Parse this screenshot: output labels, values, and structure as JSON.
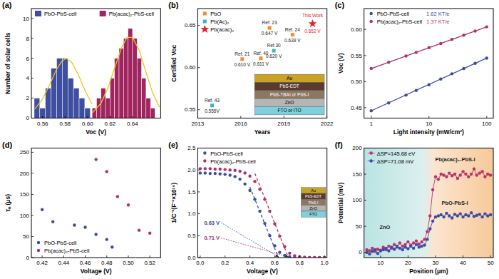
{
  "chart_data": [
    {
      "panel": "(a)",
      "type": "histogram",
      "x_label": "Voc (V)",
      "y_label": "Number of solar cells",
      "xlim": [
        0.55,
        0.665
      ],
      "ylim": [
        0,
        11
      ],
      "xticks": [
        0.56,
        0.58,
        {
          "value": 0.6,
          "label": "0.60"
        },
        0.62,
        0.64
      ],
      "yticks": [
        0,
        2,
        4,
        6,
        8,
        10
      ],
      "legend": "top",
      "series": [
        {
          "name": "PbO-PbS-cell",
          "color": "#3f4fa0",
          "bins": [
            0.5525,
            0.5575,
            0.5625,
            0.5675,
            0.5725,
            0.5775,
            0.5825,
            0.5875,
            0.5925,
            0.5975,
            0.6025
          ],
          "values": [
            2,
            1,
            3,
            5,
            6,
            6,
            4,
            3,
            2,
            1
          ]
        },
        {
          "name": "Pb(acac)₂-PbS-cell",
          "color": "#a0245e",
          "bins": [
            0.604,
            0.608,
            0.612,
            0.616,
            0.62,
            0.624,
            0.628,
            0.632,
            0.636,
            0.64,
            0.644,
            0.648,
            0.652,
            0.656,
            0.66
          ],
          "values": [
            1,
            2,
            3,
            2,
            4,
            6,
            7,
            8,
            9,
            8,
            6,
            4,
            2,
            1
          ]
        },
        {
          "type": "line",
          "line_style": "solid",
          "color": "#f2c21b",
          "x": [
            0.553,
            0.56,
            0.566,
            0.572,
            0.577,
            0.581,
            0.586,
            0.592,
            0.598,
            0.604
          ],
          "values": [
            0.9,
            1.9,
            3.3,
            4.8,
            5.7,
            6.0,
            5.6,
            4.3,
            2.7,
            1.4
          ]
        },
        {
          "type": "line",
          "line_style": "solid",
          "color": "#f2c21b",
          "x": [
            0.604,
            0.612,
            0.618,
            0.624,
            0.63,
            0.635,
            0.64,
            0.646,
            0.652,
            0.658,
            0.664
          ],
          "values": [
            0.5,
            1.5,
            3.0,
            5.0,
            7.0,
            8.1,
            8.1,
            6.8,
            4.6,
            2.5,
            1.1
          ]
        }
      ]
    },
    {
      "panel": "(b)",
      "type": "scatter",
      "x_label": "Years",
      "y_label": "Certified Voc",
      "xlim": [
        2013,
        2022
      ],
      "ylim": [
        0.54,
        0.67
      ],
      "xticks": [
        2013,
        2016,
        2019,
        2022
      ],
      "yticks": [
        0.55,
        {
          "value": 0.6,
          "label": "0.60"
        },
        0.65
      ],
      "legend": "upper left",
      "data_labels": true,
      "series": [
        {
          "name": "PbO",
          "color": "#f08c2a",
          "marker": "square",
          "x": [
            2016.1,
            2017.4,
            2018.0,
            2019.6
          ],
          "values": [
            0.61,
            0.611,
            0.647,
            0.639
          ],
          "value_labels": [
            "0.610 V",
            "0.611 V",
            "0.647 V",
            "0.639 V"
          ],
          "point_labels": [
            "Ref. 21",
            "Ref. 40",
            "Ref. 23",
            "Ref. 24"
          ]
        },
        {
          "name": "Pb(Ac)₂",
          "color": "#3bb4c4",
          "marker": "square",
          "x": [
            2014.0,
            2018.3
          ],
          "values": [
            0.555,
            0.62
          ],
          "value_labels": [
            "0.555V",
            "0.620 V"
          ],
          "point_labels": [
            "Ref. 43",
            "Ref.30"
          ]
        },
        {
          "name": "Pb(acac)₂",
          "color": "#e8202a",
          "marker": "star",
          "x": [
            2021.0
          ],
          "values": [
            0.652
          ],
          "value_labels": [
            "0.652 V"
          ],
          "point_labels": [
            "This Work"
          ]
        }
      ],
      "inset": [
        "Au",
        "PbS-EDT",
        "PbS-TBAI or PbS-I",
        "ZnO",
        "FTO or ITO"
      ]
    },
    {
      "panel": "(c)",
      "type": "scatter",
      "log": "x",
      "x_label": "Light intensity (mW/cm²)",
      "y_label": "Voc (V)",
      "xlim": [
        0.75,
        130
      ],
      "ylim": [
        0.43,
        0.64
      ],
      "xticks": [
        1,
        10,
        100
      ],
      "yticks": [
        0.45,
        {
          "value": 0.5,
          "label": "0.50"
        },
        0.55,
        {
          "value": 0.6,
          "label": "0.60"
        }
      ],
      "legend": "upper left",
      "series": [
        {
          "name": "PbO-PbS-cell",
          "slope_label": "1.62 KT/e",
          "color": "#3a4ba8",
          "marker": "circle",
          "x": [
            1,
            2,
            4,
            6,
            10,
            16,
            25,
            40,
            63,
            100
          ],
          "values": [
            0.444,
            0.459,
            0.474,
            0.483,
            0.494,
            0.505,
            0.515,
            0.525,
            0.535,
            0.545
          ]
        },
        {
          "name": "Pb(acac)₂-PbS-cell",
          "slope_label": "1.37 KT/e",
          "color": "#b0306a",
          "marker": "circle",
          "x": [
            1,
            2,
            4,
            6,
            10,
            16,
            25,
            40,
            63,
            100
          ],
          "values": [
            0.525,
            0.537,
            0.549,
            0.556,
            0.565,
            0.573,
            0.581,
            0.589,
            0.597,
            0.605
          ]
        },
        {
          "type": "line",
          "line_style": "solid",
          "color": "#3a4ba8",
          "x": [
            1,
            100
          ],
          "values": [
            0.444,
            0.545
          ]
        },
        {
          "type": "line",
          "line_style": "solid",
          "color": "#b0306a",
          "x": [
            1,
            100
          ],
          "values": [
            0.525,
            0.605
          ]
        }
      ]
    },
    {
      "panel": "(d)",
      "type": "scatter",
      "x_label": "Voltage (V)",
      "y_label": "τₙ (μs)",
      "xlim": [
        0.41,
        0.53
      ],
      "ylim": [
        0,
        260
      ],
      "xticks": [
        0.42,
        0.44,
        0.46,
        0.48,
        {
          "value": 0.5,
          "label": "0.50"
        },
        0.52
      ],
      "yticks": [
        0,
        50,
        100,
        150,
        200,
        250
      ],
      "legend": "lower left",
      "series": [
        {
          "name": "PbO-PbS-cell",
          "color": "#3a4ba8",
          "marker": "circle",
          "x": [
            0.42,
            0.43,
            0.45,
            0.46,
            0.47,
            0.48,
            0.485
          ],
          "values": [
            114,
            85,
            77,
            72,
            55,
            43,
            25
          ]
        },
        {
          "name": "Pb(acac)₂-PbS-cell",
          "color": "#b0306a",
          "marker": "circle",
          "x": [
            0.47,
            0.48,
            0.49,
            0.5,
            0.51,
            0.52
          ],
          "values": [
            233,
            204,
            145,
            125,
            65,
            58
          ]
        }
      ]
    },
    {
      "panel": "(e)",
      "type": "scatter",
      "x_label": "Voltage (V)",
      "y_label": "1/C⁻²(F⁻²×10¹⁶)",
      "xlim": [
        -0.02,
        1.02
      ],
      "ylim": [
        0,
        2.5
      ],
      "xticks": [
        {
          "value": 0,
          "label": "0.0"
        },
        0.2,
        0.4,
        0.6,
        0.8,
        {
          "value": 1,
          "label": "1.0"
        }
      ],
      "yticks": [
        {
          "value": 0,
          "label": "0.0"
        },
        0.5,
        {
          "value": 1,
          "label": "1.0"
        },
        1.5,
        {
          "value": 2,
          "label": "2.0"
        },
        2.5
      ],
      "legend": "upper left",
      "series": [
        {
          "name": "PbO-PbS-cell",
          "color": "#3a4ba8",
          "marker": "circle",
          "x": [
            0,
            0.04,
            0.08,
            0.12,
            0.16,
            0.2,
            0.24,
            0.28,
            0.32,
            0.36,
            0.4,
            0.44,
            0.48,
            0.52,
            0.56,
            0.6,
            0.64,
            0.68,
            0.72,
            0.76,
            0.8,
            0.84,
            0.88,
            0.92,
            0.96,
            1
          ],
          "values": [
            1.93,
            1.93,
            1.92,
            1.92,
            1.91,
            1.9,
            1.88,
            1.85,
            1.79,
            1.68,
            1.53,
            1.33,
            1.06,
            0.78,
            0.5,
            0.27,
            0.12,
            0.05,
            0.02,
            0.01,
            0.01,
            0,
            0,
            0,
            0,
            0
          ]
        },
        {
          "name": "Pb(acac)₂-PbS-cell",
          "color": "#b0306a",
          "marker": "circle",
          "x": [
            0,
            0.04,
            0.08,
            0.12,
            0.16,
            0.2,
            0.24,
            0.28,
            0.32,
            0.36,
            0.4,
            0.44,
            0.48,
            0.52,
            0.56,
            0.6,
            0.64,
            0.68,
            0.72,
            0.76,
            0.8,
            0.84,
            0.88,
            0.92,
            0.96,
            1
          ],
          "values": [
            2.03,
            2.03,
            2.03,
            2.02,
            2.02,
            2.01,
            2.0,
            1.99,
            1.97,
            1.93,
            1.86,
            1.74,
            1.56,
            1.33,
            1.06,
            0.77,
            0.49,
            0.25,
            0.1,
            0.04,
            0.02,
            0.01,
            0,
            0,
            0,
            0
          ]
        },
        {
          "type": "line",
          "line_style": "dashed",
          "color": "#3a4ba8",
          "x": [
            0.4,
            0.63
          ],
          "values": [
            1.61,
            0
          ]
        },
        {
          "type": "line",
          "line_style": "dashed",
          "color": "#b0306a",
          "x": [
            0.44,
            0.71
          ],
          "values": [
            1.92,
            0
          ]
        }
      ],
      "annotations": [
        {
          "text": "0.63 V",
          "value": 0.63
        },
        {
          "text": "0.71 V",
          "value": 0.71
        }
      ],
      "inset": [
        "Au",
        "PbS-EDT",
        "PbS-I",
        "ZnO",
        "FTO"
      ]
    },
    {
      "panel": "(f)",
      "type": "line",
      "x_label": "Position (μm)",
      "y_label": "Potential (mV)",
      "xlim": [
        4,
        51
      ],
      "ylim": [
        -10,
        200
      ],
      "xticks": [
        10,
        20,
        30,
        40,
        50
      ],
      "yticks": [
        0,
        50,
        100,
        150,
        200
      ],
      "legend": "upper left",
      "series": [
        {
          "name": "ΔSP=145.68 eV",
          "color": "#c0306a",
          "marker": "circle",
          "x": [
            5,
            6,
            7,
            8,
            9,
            10,
            11,
            12,
            13,
            14,
            15,
            16,
            17,
            18,
            19,
            20,
            21,
            22,
            23,
            24,
            25,
            26,
            27,
            28,
            29,
            30,
            31,
            32,
            33,
            34,
            35,
            36,
            37,
            38,
            39,
            40,
            41,
            42,
            43,
            44,
            45,
            46,
            47,
            48,
            49,
            50
          ],
          "values": [
            5,
            3,
            8,
            2,
            6,
            4,
            10,
            5,
            12,
            8,
            15,
            10,
            18,
            12,
            15,
            20,
            14,
            18,
            22,
            16,
            20,
            25,
            40,
            70,
            120,
            145,
            140,
            150,
            148,
            145,
            152,
            147,
            150,
            142,
            148,
            155,
            150,
            145,
            150,
            160,
            148,
            152,
            155,
            145,
            150,
            148
          ]
        },
        {
          "name": "ΔSP=71.08 mV",
          "color": "#3a4ba8",
          "marker": "circle",
          "x": [
            5,
            6,
            7,
            8,
            9,
            10,
            11,
            12,
            13,
            14,
            15,
            16,
            17,
            18,
            19,
            20,
            21,
            22,
            23,
            24,
            25,
            26,
            27,
            28,
            29,
            30,
            31,
            32,
            33,
            34,
            35,
            36,
            37,
            38,
            39,
            40,
            41,
            42,
            43,
            44,
            45,
            46,
            47,
            48,
            49,
            50
          ],
          "values": [
            0,
            -3,
            2,
            5,
            -2,
            3,
            5,
            8,
            3,
            10,
            6,
            12,
            8,
            5,
            10,
            7,
            12,
            8,
            15,
            10,
            12,
            14,
            25,
            45,
            60,
            68,
            70,
            72,
            68,
            75,
            70,
            66,
            73,
            70,
            74,
            68,
            72,
            70,
            76,
            69,
            71,
            73,
            68,
            74,
            70,
            72
          ]
        }
      ],
      "annotations": [
        {
          "text": "ZnO"
        },
        {
          "text": "Pb(acac)₂-PbS-I"
        },
        {
          "text": "PbO-PbS-I"
        }
      ]
    }
  ]
}
